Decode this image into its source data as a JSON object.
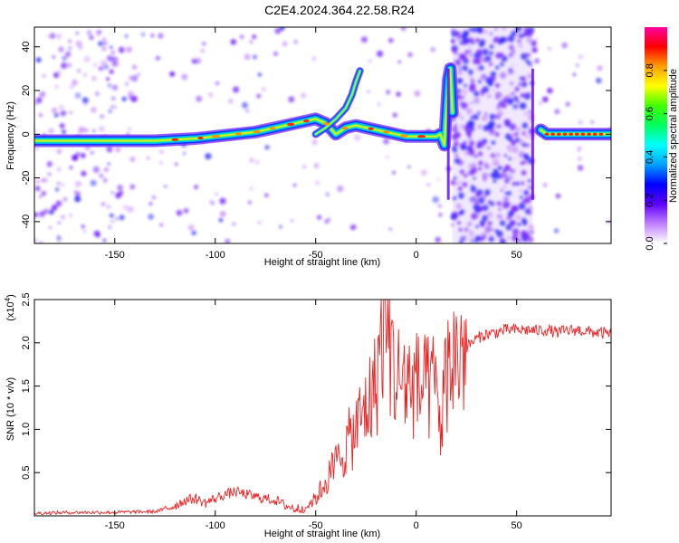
{
  "title": "C2E4.2024.364.22.58.R24",
  "chart_data": [
    {
      "type": "heatmap",
      "xlabel": "Height of straight line (km)",
      "ylabel": "Frequency (Hz)",
      "xlim": [
        -190,
        97
      ],
      "ylim": [
        -50,
        49
      ],
      "xticks": [
        -150,
        -100,
        -50,
        0,
        50
      ],
      "yticks": [
        -40,
        -20,
        0,
        20,
        40
      ],
      "colorbar": {
        "label": "Normalized spectral amplitude",
        "range": [
          0,
          1
        ],
        "ticks": [
          0.0,
          0.2,
          0.4,
          0.6,
          0.8
        ],
        "tick_labels": [
          "0.0",
          "0.2",
          "0.4",
          "0.6",
          "0.8"
        ],
        "colors": [
          "#ffffff",
          "#c080ff",
          "#6000ff",
          "#0000ff",
          "#00a0ff",
          "#00ffff",
          "#00ff60",
          "#40ff00",
          "#ffff00",
          "#ffa000",
          "#ff0000",
          "#ff00a0"
        ]
      },
      "ridge": {
        "x": [
          -190,
          -170,
          -150,
          -140,
          -130,
          -120,
          -110,
          -100,
          -90,
          -80,
          -70,
          -60,
          -50,
          -45,
          -40,
          -35,
          -30,
          -25,
          -20,
          -15,
          -10,
          -5,
          0,
          5,
          10,
          12,
          14,
          16,
          17,
          18
        ],
        "y": [
          -3,
          -3,
          -3,
          -3,
          -3,
          -2.5,
          -2,
          -1,
          0,
          1,
          3,
          5,
          7,
          5,
          0,
          3,
          4,
          3,
          2,
          1,
          0,
          -1,
          -1,
          -1,
          -1,
          0,
          -5,
          25,
          30,
          10
        ]
      },
      "branch": {
        "x": [
          -50,
          -45,
          -40,
          -35,
          -32,
          -30,
          -28
        ],
        "y": [
          0,
          3,
          7,
          12,
          18,
          24,
          29
        ]
      },
      "post_ridge": {
        "x": [
          62,
          65,
          70,
          80,
          90,
          97
        ],
        "y": [
          2,
          0,
          0,
          0,
          0,
          0
        ]
      },
      "noise_bands": [
        {
          "x": [
            -190,
            -140
          ],
          "level": "medium"
        },
        {
          "x": [
            18,
            58
          ],
          "level": "high"
        }
      ]
    },
    {
      "type": "line",
      "xlabel": "Height of straight line (km)",
      "ylabel": "SNR (10 * v/v)",
      "scale_label": "(x10",
      "scale_exponent": "4",
      "scale_suffix": ")",
      "xlim": [
        -190,
        97
      ],
      "ylim": [
        0,
        2.5
      ],
      "xticks": [
        -150,
        -100,
        -50,
        0,
        50
      ],
      "yticks": [
        0.5,
        1.0,
        1.5,
        2.0,
        2.5
      ],
      "ytick_labels": [
        "0.5",
        "1.0",
        "1.5",
        "2.0",
        "2.5"
      ],
      "color": "#ee2222",
      "series": [
        {
          "x": [
            -190,
            -170,
            -150,
            -130,
            -125,
            -120,
            -115,
            -110,
            -105,
            -100,
            -95,
            -90,
            -85,
            -80,
            -75,
            -70,
            -65,
            -60,
            -55,
            -50,
            -45,
            -40,
            -35,
            -30,
            -25,
            -20,
            -18,
            -15,
            -12,
            -10,
            -5,
            0,
            5,
            10,
            12,
            15,
            18,
            20,
            25,
            30,
            35,
            40,
            45,
            50,
            55,
            60,
            65,
            70,
            75,
            80,
            85,
            90,
            97
          ],
          "y": [
            0.03,
            0.04,
            0.04,
            0.05,
            0.08,
            0.12,
            0.18,
            0.2,
            0.15,
            0.2,
            0.25,
            0.28,
            0.25,
            0.22,
            0.2,
            0.18,
            0.12,
            0.08,
            0.1,
            0.2,
            0.4,
            0.6,
            0.8,
            1.0,
            1.25,
            1.5,
            2.0,
            2.5,
            1.8,
            1.6,
            1.55,
            1.5,
            1.45,
            1.5,
            1.0,
            1.65,
            1.8,
            1.85,
            1.95,
            2.05,
            2.1,
            2.12,
            2.15,
            2.15,
            2.15,
            2.14,
            2.15,
            2.12,
            2.14,
            2.15,
            2.13,
            2.12,
            2.1
          ]
        }
      ]
    }
  ]
}
